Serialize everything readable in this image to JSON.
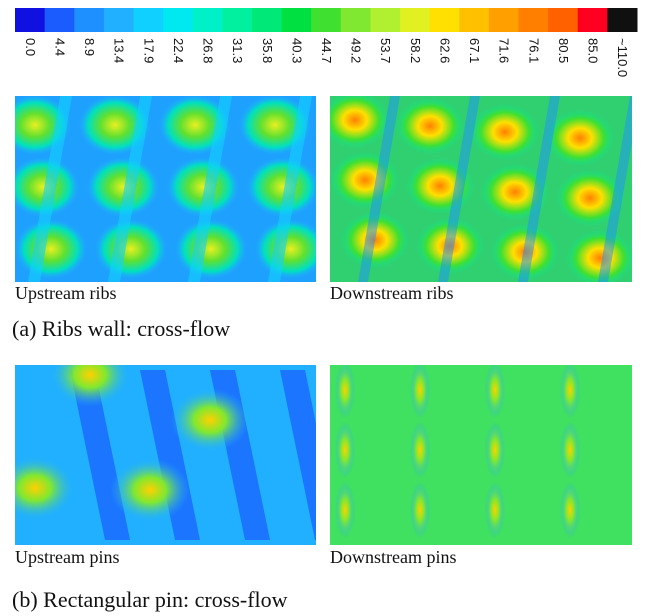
{
  "colorbar": {
    "labels": [
      "0.0",
      "4.4",
      "8.9",
      "13.4",
      "17.9",
      "22.4",
      "26.8",
      "31.3",
      "35.8",
      "40.3",
      "44.7",
      "49.2",
      "53.7",
      "58.2",
      "62.6",
      "67.1",
      "71.6",
      "76.1",
      "80.5",
      "85.0",
      "~110.0"
    ],
    "colors": [
      "#1010e0",
      "#1a5cff",
      "#1e90ff",
      "#20b0ff",
      "#10d0ff",
      "#00e8f0",
      "#00f0c8",
      "#00f0a0",
      "#00e878",
      "#00e040",
      "#40e030",
      "#80e830",
      "#b0f030",
      "#e0f020",
      "#ffe000",
      "#ffc000",
      "#ffa000",
      "#ff8000",
      "#ff6000",
      "#ff0020",
      "#101010"
    ]
  },
  "panel_a": {
    "left_caption": "Upstream ribs",
    "right_caption": "Downstream ribs",
    "caption": "(a) Ribs wall: cross-flow"
  },
  "panel_b": {
    "left_caption": "Upstream pins",
    "right_caption": "Downstream pins",
    "caption": "(b) Rectangular pin: cross-flow"
  }
}
